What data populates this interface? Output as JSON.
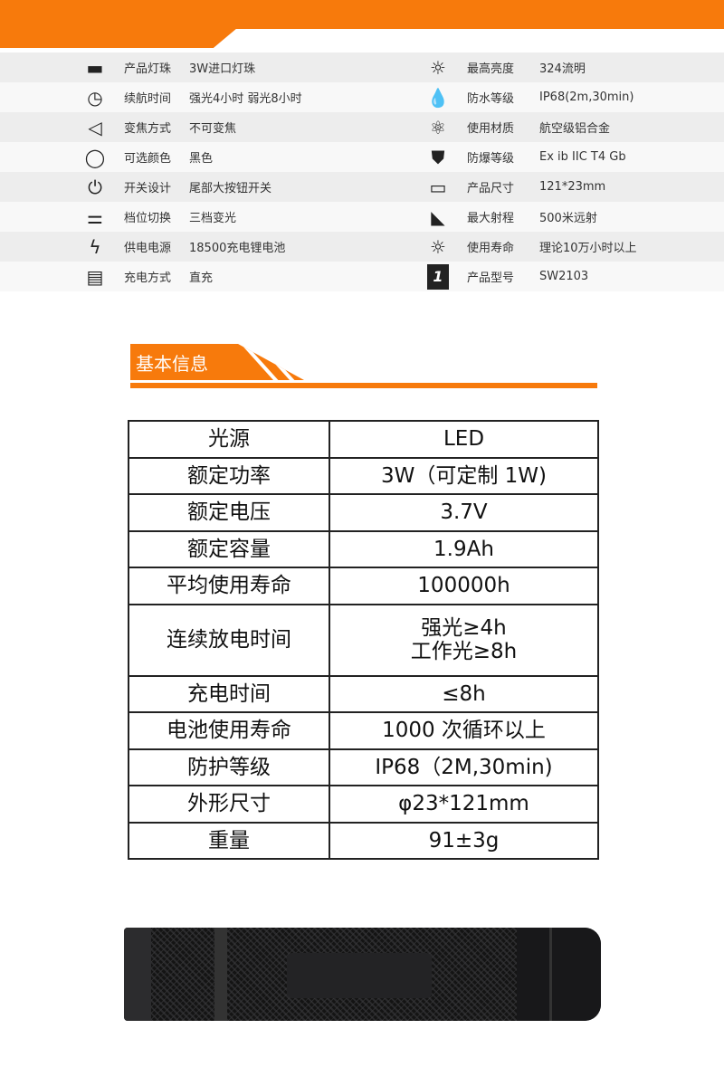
{
  "specs": {
    "left": [
      {
        "icon": "led-bead-icon",
        "label": "产品灯珠",
        "value": "3W进口灯珠"
      },
      {
        "icon": "clock-icon",
        "label": "续航时间",
        "value": "强光4小时 弱光8小时"
      },
      {
        "icon": "zoom-cone-icon",
        "label": "变焦方式",
        "value": "不可变焦"
      },
      {
        "icon": "color-ring-icon",
        "label": "可选颜色",
        "value": "黑色"
      },
      {
        "icon": "power-icon",
        "label": "开关设计",
        "value": "尾部大按钮开关"
      },
      {
        "icon": "slider-icon",
        "label": "档位切换",
        "value": "三档变光"
      },
      {
        "icon": "battery-charge-icon",
        "label": "供电电源",
        "value": "18500充电锂电池"
      },
      {
        "icon": "battery-icon",
        "label": "充电方式",
        "value": "直充"
      }
    ],
    "right": [
      {
        "icon": "sun-icon",
        "label": "最高亮度",
        "value": "324流明"
      },
      {
        "icon": "water-drops-icon",
        "label": "防水等级",
        "value": "IP68(2m,30min)"
      },
      {
        "icon": "molecule-icon",
        "label": "使用材质",
        "value": "航空级铝合金"
      },
      {
        "icon": "shield-icon",
        "label": "防爆等级",
        "value": "Ex ib IIC T4 Gb"
      },
      {
        "icon": "ruler-icon",
        "label": "产品尺寸",
        "value": "121*23mm"
      },
      {
        "icon": "beam-range-icon",
        "label": "最大射程",
        "value": "500米远射"
      },
      {
        "icon": "sun-outline-icon",
        "label": "使用寿命",
        "value": "理论10万小时以上"
      },
      {
        "icon": "model-number-icon",
        "label": "产品型号",
        "value": "SW2103",
        "icon_text": "1"
      }
    ]
  },
  "section": {
    "title": "基本信息"
  },
  "table": [
    {
      "k": "光源",
      "v": "LED"
    },
    {
      "k": "额定功率",
      "v": "3W（可定制 1W)"
    },
    {
      "k": "额定电压",
      "v": "3.7V"
    },
    {
      "k": "额定容量",
      "v": "1.9Ah"
    },
    {
      "k": "平均使用寿命",
      "v": "100000h"
    },
    {
      "k": "连续放电时间",
      "v": "强光≥4h",
      "v2": "工作光≥8h"
    },
    {
      "k": "充电时间",
      "v": "≤8h"
    },
    {
      "k": "电池使用寿命",
      "v": "1000 次循环以上"
    },
    {
      "k": "防护等级",
      "v": "IP68（2M,30min)"
    },
    {
      "k": "外形尺寸",
      "v": "φ23*121mm"
    },
    {
      "k": "重量",
      "v": "91±3g"
    }
  ],
  "colors": {
    "accent": "#f77a0c"
  }
}
